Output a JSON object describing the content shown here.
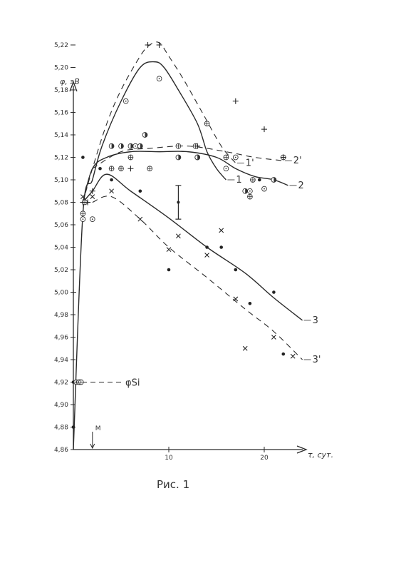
{
  "chart_data": {
    "type": "scatter",
    "title": "",
    "caption": "Рис. 1",
    "xlabel": "τ, сут.",
    "ylabel": "φ, эВ",
    "xlim": [
      0,
      25
    ],
    "ylim": [
      4.86,
      5.23
    ],
    "x_ticks": [
      {
        "value": 10,
        "label": "10"
      },
      {
        "value": 20,
        "label": "20"
      }
    ],
    "y_ticks": [
      {
        "value": 4.86,
        "label": "4,86"
      },
      {
        "value": 4.88,
        "label": "4,88"
      },
      {
        "value": 4.9,
        "label": "4,90"
      },
      {
        "value": 4.92,
        "label": "4,92"
      },
      {
        "value": 4.94,
        "label": "4,94"
      },
      {
        "value": 4.96,
        "label": "4,96"
      },
      {
        "value": 4.98,
        "label": "4,98"
      },
      {
        "value": 5.0,
        "label": "5,00"
      },
      {
        "value": 5.02,
        "label": "5,02"
      },
      {
        "value": 5.04,
        "label": "5,04"
      },
      {
        "value": 5.06,
        "label": "5,06"
      },
      {
        "value": 5.08,
        "label": "5,08"
      },
      {
        "value": 5.1,
        "label": "5,10"
      },
      {
        "value": 5.12,
        "label": "5,12"
      },
      {
        "value": 5.14,
        "label": "5,14"
      },
      {
        "value": 5.16,
        "label": "5,16"
      },
      {
        "value": 5.18,
        "label": "5,18"
      },
      {
        "value": 5.2,
        "label": "5,20"
      },
      {
        "value": 5.22,
        "label": "5,22"
      }
    ],
    "annotations": [
      {
        "text": "M",
        "x": 2.0,
        "kind": "arrow"
      },
      {
        "text": "φSi",
        "y": 4.92,
        "kind": "reference-line"
      }
    ],
    "error_bar": {
      "x": 11.0,
      "y": 5.08,
      "low": 5.065,
      "high": 5.095
    },
    "curves": [
      {
        "label": "1",
        "style": "solid",
        "points": [
          [
            0,
            4.86
          ],
          [
            1,
            5.07
          ],
          [
            2,
            5.1
          ],
          [
            3,
            5.13
          ],
          [
            5,
            5.17
          ],
          [
            7,
            5.2
          ],
          [
            8.5,
            5.205
          ],
          [
            9.5,
            5.2
          ],
          [
            11,
            5.18
          ],
          [
            13,
            5.15
          ],
          [
            14,
            5.125
          ],
          [
            15,
            5.11
          ],
          [
            16,
            5.1
          ]
        ]
      },
      {
        "label": "1'",
        "style": "dashed",
        "points": [
          [
            1,
            5.08
          ],
          [
            2,
            5.11
          ],
          [
            3.5,
            5.15
          ],
          [
            5,
            5.18
          ],
          [
            7,
            5.21
          ],
          [
            8,
            5.22
          ],
          [
            9,
            5.222
          ],
          [
            10,
            5.21
          ],
          [
            11.5,
            5.19
          ],
          [
            13.5,
            5.16
          ],
          [
            15.5,
            5.13
          ],
          [
            17,
            5.115
          ]
        ]
      },
      {
        "label": "2",
        "style": "solid",
        "points": [
          [
            1,
            5.08
          ],
          [
            2,
            5.11
          ],
          [
            3.5,
            5.12
          ],
          [
            6,
            5.125
          ],
          [
            9,
            5.125
          ],
          [
            12,
            5.125
          ],
          [
            15,
            5.12
          ],
          [
            17,
            5.11
          ],
          [
            19,
            5.103
          ],
          [
            21,
            5.1
          ],
          [
            22.5,
            5.095
          ]
        ]
      },
      {
        "label": "2'",
        "style": "dashed",
        "points": [
          [
            2,
            5.11
          ],
          [
            5,
            5.125
          ],
          [
            8,
            5.128
          ],
          [
            12,
            5.13
          ],
          [
            16,
            5.125
          ],
          [
            19,
            5.12
          ],
          [
            22,
            5.117
          ]
        ]
      },
      {
        "label": "3",
        "style": "solid",
        "points": [
          [
            1,
            5.08
          ],
          [
            2,
            5.09
          ],
          [
            3.5,
            5.105
          ],
          [
            6,
            5.09
          ],
          [
            10,
            5.066
          ],
          [
            14,
            5.04
          ],
          [
            18,
            5.017
          ],
          [
            21,
            4.995
          ],
          [
            24,
            4.975
          ]
        ]
      },
      {
        "label": "3'",
        "style": "dashed",
        "points": [
          [
            2,
            5.08
          ],
          [
            4,
            5.085
          ],
          [
            7,
            5.065
          ],
          [
            10,
            5.04
          ],
          [
            14,
            5.013
          ],
          [
            18,
            4.985
          ],
          [
            21,
            4.965
          ],
          [
            24,
            4.94
          ]
        ]
      }
    ],
    "series": [
      {
        "marker": "dot",
        "points": [
          [
            0,
            4.88
          ],
          [
            0,
            4.92
          ],
          [
            1,
            5.12
          ],
          [
            2.8,
            5.11
          ],
          [
            4,
            5.1
          ],
          [
            7,
            5.09
          ],
          [
            10,
            5.02
          ],
          [
            14,
            5.04
          ],
          [
            15.5,
            5.04
          ],
          [
            17,
            5.02
          ],
          [
            18.5,
            4.99
          ],
          [
            21,
            5.0
          ],
          [
            22,
            4.945
          ],
          [
            19.5,
            5.1
          ],
          [
            21,
            5.1
          ]
        ]
      },
      {
        "marker": "open-dot",
        "points": [
          [
            1,
            5.065
          ],
          [
            2,
            5.065
          ],
          [
            5.5,
            5.17
          ],
          [
            6.5,
            5.13
          ],
          [
            9,
            5.19
          ],
          [
            16,
            5.11
          ],
          [
            17,
            5.12
          ],
          [
            18.5,
            5.09
          ],
          [
            20,
            5.092
          ]
        ]
      },
      {
        "marker": "circle-plus",
        "points": [
          [
            0.3,
            4.92
          ],
          [
            0.6,
            4.92
          ],
          [
            0.8,
            4.92
          ],
          [
            1,
            5.07
          ],
          [
            1.2,
            5.08
          ],
          [
            4,
            5.11
          ],
          [
            5,
            5.11
          ],
          [
            6,
            5.12
          ],
          [
            8,
            5.11
          ],
          [
            11,
            5.13
          ],
          [
            12.8,
            5.13
          ],
          [
            13,
            5.12
          ],
          [
            14,
            5.15
          ],
          [
            16,
            5.12
          ],
          [
            18.5,
            5.085
          ],
          [
            18.8,
            5.1
          ],
          [
            22,
            5.12
          ]
        ]
      },
      {
        "marker": "half-circle",
        "points": [
          [
            4,
            5.13
          ],
          [
            5,
            5.13
          ],
          [
            6,
            5.13
          ],
          [
            7,
            5.13
          ],
          [
            7.5,
            5.14
          ],
          [
            11,
            5.12
          ],
          [
            13,
            5.12
          ],
          [
            18,
            5.09
          ],
          [
            21,
            5.1
          ]
        ]
      },
      {
        "marker": "plus",
        "points": [
          [
            0,
            5.0
          ],
          [
            1,
            5.08
          ],
          [
            1.5,
            5.08
          ],
          [
            2,
            5.09
          ],
          [
            6,
            5.11
          ],
          [
            7.8,
            5.22
          ],
          [
            9,
            5.22
          ],
          [
            13,
            5.13
          ],
          [
            17,
            5.17
          ],
          [
            20,
            5.145
          ],
          [
            22,
            5.12
          ]
        ]
      },
      {
        "marker": "cross",
        "points": [
          [
            1,
            5.085
          ],
          [
            2,
            5.085
          ],
          [
            4,
            5.09
          ],
          [
            7,
            5.065
          ],
          [
            10,
            5.038
          ],
          [
            11,
            5.05
          ],
          [
            14,
            5.033
          ],
          [
            15.5,
            5.055
          ],
          [
            17,
            4.994
          ],
          [
            18,
            4.95
          ],
          [
            21,
            4.96
          ],
          [
            23,
            4.943
          ]
        ]
      }
    ]
  }
}
